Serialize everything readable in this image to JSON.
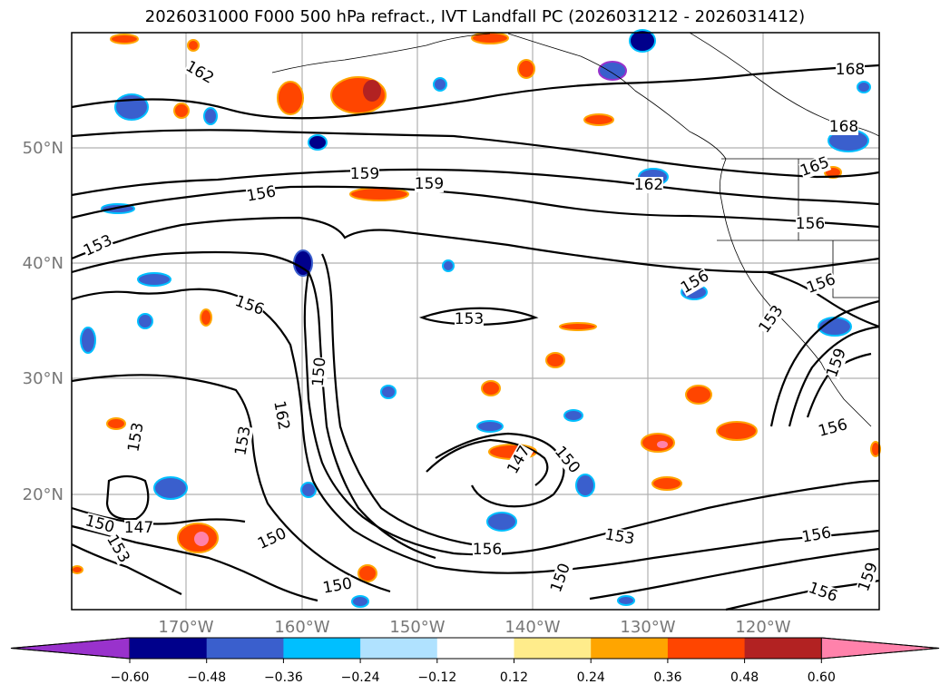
{
  "title": "2026031000 F000 500 hPa refract., IVT Landfall PC (2026031212 - 2026031412)",
  "map": {
    "lon_labels": [
      "170°W",
      "160°W",
      "150°W",
      "140°W",
      "130°W",
      "120°W"
    ],
    "lat_labels": [
      "50°N",
      "40°N",
      "30°N",
      "20°N"
    ],
    "grid": true,
    "contour_color": "#000000",
    "contour_labels": [
      {
        "text": "162"
      },
      {
        "text": "168"
      },
      {
        "text": "168"
      },
      {
        "text": "165"
      },
      {
        "text": "159"
      },
      {
        "text": "159"
      },
      {
        "text": "162"
      },
      {
        "text": "156"
      },
      {
        "text": "156"
      },
      {
        "text": "153"
      },
      {
        "text": "156"
      },
      {
        "text": "156"
      },
      {
        "text": "156"
      },
      {
        "text": "153"
      },
      {
        "text": "153"
      },
      {
        "text": "150"
      },
      {
        "text": "162"
      },
      {
        "text": "153"
      },
      {
        "text": "153"
      },
      {
        "text": "150"
      },
      {
        "text": "147"
      },
      {
        "text": "150"
      },
      {
        "text": "147"
      },
      {
        "text": "150"
      },
      {
        "text": "150"
      },
      {
        "text": "150"
      },
      {
        "text": "153"
      },
      {
        "text": "156"
      },
      {
        "text": "156"
      },
      {
        "text": "156"
      },
      {
        "text": "156"
      },
      {
        "text": "159"
      },
      {
        "text": "153"
      },
      {
        "text": "159"
      }
    ]
  },
  "colorbar": {
    "colors": [
      "#9932cc",
      "#00008b",
      "#3a5fcd",
      "#00bfff",
      "#b0e2ff",
      "#ffffff",
      "#ffec8b",
      "#ffa500",
      "#ff4500",
      "#b22222",
      "#ff82ab"
    ],
    "ticks": [
      "−0.60",
      "−0.48",
      "−0.36",
      "−0.24",
      "−0.12",
      "0.12",
      "0.24",
      "0.36",
      "0.48",
      "0.60"
    ]
  }
}
